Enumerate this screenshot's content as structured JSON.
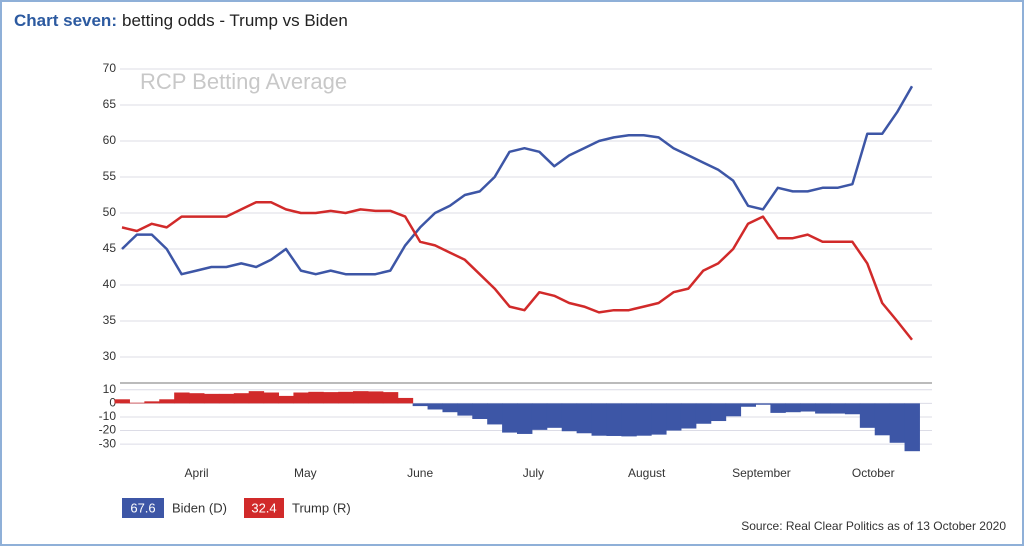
{
  "header": {
    "label": "Chart seven:",
    "title": "betting odds - Trump vs Biden"
  },
  "source": "Source: Real Clear Politics as of 13 October 2020",
  "chart_data": [
    {
      "type": "line",
      "annotation": "RCP Betting Average",
      "series": [
        {
          "name": "Biden (D)",
          "color": "#3d56a6",
          "values": [
            45,
            47,
            47,
            45,
            41.5,
            42,
            42.5,
            42.5,
            43,
            42.5,
            43.5,
            45,
            42,
            41.5,
            42,
            41.5,
            41.5,
            41.5,
            42,
            45.5,
            48,
            50,
            51,
            52.5,
            53,
            55,
            58.5,
            59,
            58.5,
            56.5,
            58,
            59,
            60,
            60.5,
            60.8,
            60.8,
            60.5,
            59,
            58,
            57,
            56,
            54.5,
            51,
            50.5,
            53.5,
            53,
            53,
            53.5,
            53.5,
            54,
            61,
            61,
            64,
            67.6
          ]
        },
        {
          "name": "Trump (R)",
          "color": "#d12a2a",
          "values": [
            48,
            47.5,
            48.5,
            48,
            49.5,
            49.5,
            49.5,
            49.5,
            50.5,
            51.5,
            51.5,
            50.5,
            50,
            50,
            50.3,
            50,
            50.5,
            50.3,
            50.3,
            49.5,
            46,
            45.5,
            44.5,
            43.5,
            41.5,
            39.5,
            37,
            36.5,
            39,
            38.5,
            37.5,
            37,
            36.2,
            36.5,
            36.5,
            37,
            37.5,
            39,
            39.5,
            42,
            43,
            45,
            48.5,
            49.5,
            46.5,
            46.5,
            47,
            46,
            46,
            46,
            43,
            37.5,
            35,
            32.4
          ]
        }
      ],
      "xlim": [
        0,
        53
      ],
      "xticks": [
        {
          "value": 5,
          "label": "April"
        },
        {
          "value": 12.3,
          "label": "May"
        },
        {
          "value": 20,
          "label": "June"
        },
        {
          "value": 27.6,
          "label": "July"
        },
        {
          "value": 35.2,
          "label": "August"
        },
        {
          "value": 42.9,
          "label": "September"
        },
        {
          "value": 50.4,
          "label": "October"
        }
      ],
      "ylim": [
        28,
        71
      ],
      "yticks": [
        30,
        35,
        40,
        45,
        50,
        55,
        60,
        65,
        70
      ],
      "grid": true
    },
    {
      "type": "bar",
      "values": [
        3,
        0.5,
        1.5,
        3,
        8,
        7.5,
        7,
        7,
        7.5,
        9,
        8,
        5.5,
        8,
        8.5,
        8.3,
        8.5,
        9,
        8.8,
        8.3,
        4,
        -2,
        -4.5,
        -6.5,
        -9,
        -11.5,
        -15.5,
        -21.5,
        -22.5,
        -19.5,
        -18,
        -20.5,
        -22,
        -23.8,
        -24,
        -24.3,
        -23.8,
        -23,
        -20,
        -18.5,
        -15,
        -13,
        -9.5,
        -2.5,
        -1,
        -7,
        -6.5,
        -6,
        -7.5,
        -7.5,
        -8,
        -18,
        -23.5,
        -29,
        -35.2
      ],
      "colors": {
        "positive": "#d12a2a",
        "negative": "#3d56a6"
      },
      "xlim": [
        0,
        53
      ],
      "ylim": [
        -38,
        15
      ],
      "yticks": [
        10,
        0,
        -10,
        -20,
        -30
      ],
      "grid": true
    }
  ]
}
